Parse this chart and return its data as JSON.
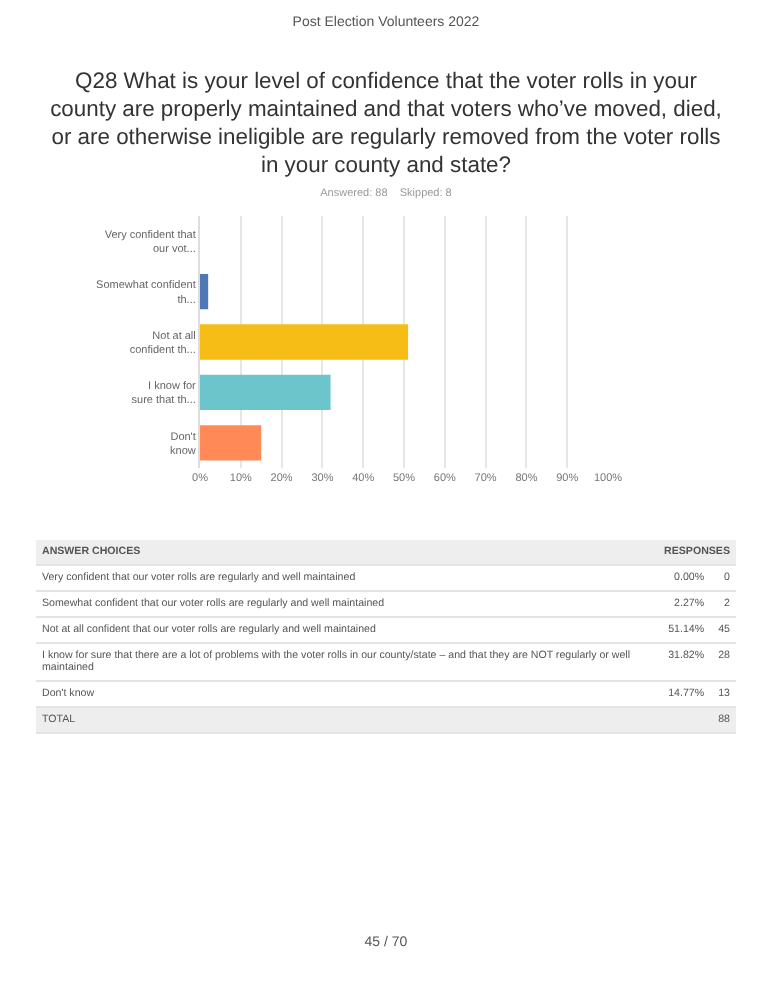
{
  "chart_data": [
    {
      "type": "bar",
      "orientation": "horizontal",
      "title": "Q28 What is your level of confidence that the voter rolls in your county are properly maintained and that voters who’ve moved, died, or are otherwise ineligible are regularly removed from the voter rolls in your county and state?",
      "subtitle": "Answered: 88    Skipped: 8",
      "annotations": [
        "Post Election Volunteers 2022",
        "45 / 70"
      ],
      "categories": [
        "Very confident that our vot...",
        "Somewhat confident th...",
        "Not at all confident th...",
        "I know for sure that th...",
        "Don't know"
      ],
      "values": [
        0,
        2,
        51,
        32,
        15
      ],
      "colors": [
        "#2f6eb5",
        "#4f79b4",
        "#f6bd16",
        "#6cc5cb",
        "#ff8a58"
      ],
      "xlim": [
        0,
        100
      ],
      "xticks": [
        {
          "value": 0,
          "label": "0%"
        },
        {
          "value": 10,
          "label": "10%"
        },
        {
          "value": 20,
          "label": "20%"
        },
        {
          "value": 30,
          "label": "30%"
        },
        {
          "value": 40,
          "label": "40%"
        },
        {
          "value": 50,
          "label": "50%"
        },
        {
          "value": 60,
          "label": "60%"
        },
        {
          "value": 70,
          "label": "70%"
        },
        {
          "value": 80,
          "label": "80%"
        },
        {
          "value": 90,
          "label": "90%"
        },
        {
          "value": 100,
          "label": "100%"
        }
      ],
      "grid": "x",
      "legend": false
    },
    {
      "type": "other",
      "xlabel": "ANSWER CHOICES",
      "ylabel": "RESPONSES",
      "categories": [
        "Very confident that our voter rolls are regularly and well maintained",
        "Somewhat confident that our voter rolls are regularly and well maintained",
        "Not at all confident that our voter rolls are regularly and well maintained",
        "I know for sure that there are a lot of problems with the voter rolls in our county/state – and that they are NOT regularly or well maintained",
        "Don't know"
      ],
      "series": [
        {
          "values": [
            0,
            2.27,
            51.14,
            31.82,
            14.77
          ],
          "value_labels": [
            "0.00%",
            "2.27%",
            "51.14%",
            "31.82%",
            "14.77%"
          ]
        },
        {
          "values": [
            0,
            2,
            45,
            28,
            13
          ]
        }
      ],
      "data_labels": true,
      "annotations": [
        "TOTAL",
        "88"
      ]
    }
  ]
}
